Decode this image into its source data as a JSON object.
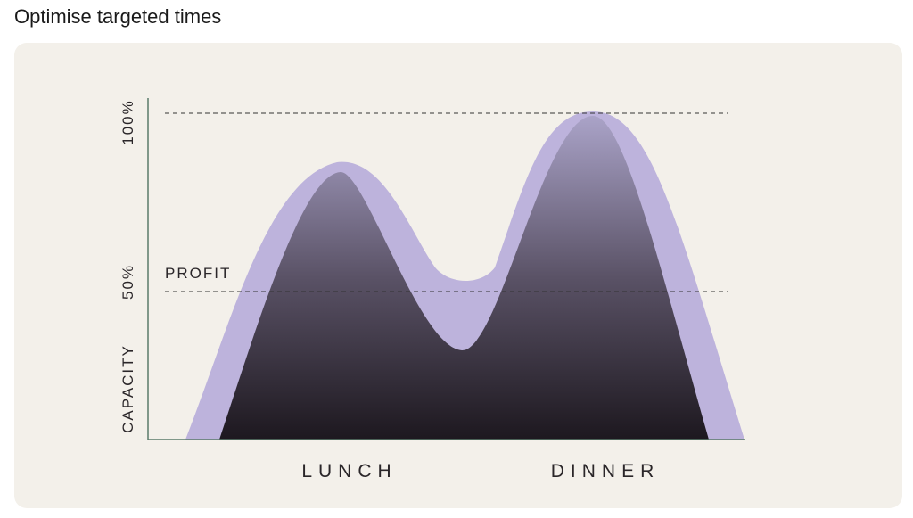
{
  "header": {
    "title": "Optimise targeted times"
  },
  "illustration": {
    "y_axis_labels": [
      "CAPACITY",
      "50%",
      "100%"
    ],
    "profit_label": "PROFIT",
    "x_axis_labels": [
      "LUNCH",
      "DINNER"
    ]
  }
}
